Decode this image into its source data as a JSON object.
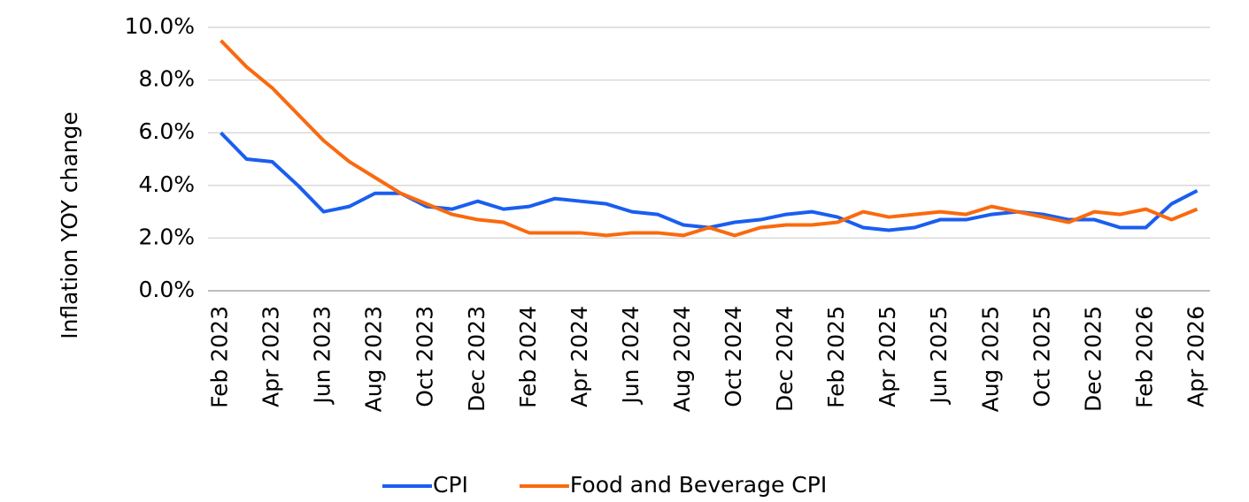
{
  "chart_data": {
    "type": "line",
    "y_label": "Inflation YOY  change",
    "categories": [
      "Feb 2023",
      null,
      "Apr 2023",
      null,
      "Jun 2023",
      null,
      "Aug 2023",
      null,
      "Oct 2023",
      null,
      "Dec 2023",
      null,
      "Feb 2024",
      null,
      "Apr 2024",
      null,
      "Jun 2024",
      null,
      "Aug 2024",
      null,
      "Oct 2024",
      null,
      "Dec 2024",
      null,
      "Feb 2025",
      null,
      "Apr 2025",
      null,
      "Jun 2025",
      null,
      "Aug 2025",
      null,
      "Oct 2025",
      null,
      "Dec 2025",
      null,
      "Feb 2026",
      null,
      "Apr 2026"
    ],
    "series": [
      {
        "name": "CPI",
        "color": "#1a5ef0",
        "values": [
          6.0,
          5.0,
          4.9,
          4.0,
          3.0,
          3.2,
          3.7,
          3.7,
          3.2,
          3.1,
          3.4,
          3.1,
          3.2,
          3.5,
          3.4,
          3.3,
          3.0,
          2.9,
          2.5,
          2.4,
          2.6,
          2.7,
          2.9,
          3.0,
          2.8,
          2.4,
          2.3,
          2.4,
          2.7,
          2.7,
          2.9,
          3.0,
          2.9,
          2.7,
          2.7,
          2.4,
          2.4,
          3.3,
          3.8
        ]
      },
      {
        "name": "Food and Beverage CPI",
        "color": "#f96a0f",
        "values": [
          9.5,
          8.5,
          7.7,
          6.7,
          5.7,
          4.9,
          4.3,
          3.7,
          3.3,
          2.9,
          2.7,
          2.6,
          2.2,
          2.2,
          2.2,
          2.1,
          2.2,
          2.2,
          2.1,
          2.4,
          2.1,
          2.4,
          2.5,
          2.5,
          2.6,
          3.0,
          2.8,
          2.9,
          3.0,
          2.9,
          3.2,
          3.0,
          2.8,
          2.6,
          3.0,
          2.9,
          3.1,
          2.7,
          3.1
        ]
      }
    ],
    "ylim": [
      0,
      10
    ],
    "yticks": [
      {
        "value": 0,
        "label": "0.0%"
      },
      {
        "value": 2,
        "label": "2.0%"
      },
      {
        "value": 4,
        "label": "4.0%"
      },
      {
        "value": 6,
        "label": "6.0%"
      },
      {
        "value": 8,
        "label": "8.0%"
      },
      {
        "value": 10,
        "label": "10.0%"
      }
    ],
    "grid": true,
    "legend": "bottom"
  }
}
